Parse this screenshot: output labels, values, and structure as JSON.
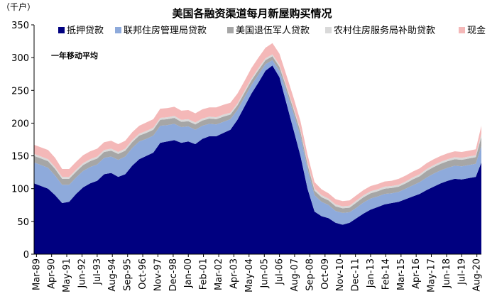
{
  "chart_data": {
    "type": "area",
    "stacked": true,
    "title": "美国各融资渠道每月新屋购买情况",
    "unit": "（千户）",
    "annotation": "一年移动平均",
    "ylim": [
      0,
      350
    ],
    "yticks": [
      0,
      50,
      100,
      150,
      200,
      250,
      300,
      350
    ],
    "x_tick_labels": [
      "Mar-89",
      "Apr-90",
      "May-91",
      "Jun-92",
      "Jul-93",
      "Aug-94",
      "Sep-95",
      "Oct-96",
      "Nov-97",
      "Dec-98",
      "Jan-00",
      "Feb-01",
      "Mar-02",
      "Apr-03",
      "May-04",
      "Jun-05",
      "Jul-06",
      "Aug-07",
      "Sep-08",
      "Oct-09",
      "Nov-10",
      "Dec-11",
      "Jan-13",
      "Feb-14",
      "Mar-15",
      "Apr-16",
      "May-17",
      "Jun-18",
      "Jul-19",
      "Aug-20"
    ],
    "x_years": [
      1989.17,
      1990.25,
      1991.33,
      1992.42,
      1993.5,
      1994.58,
      1995.67,
      1996.75,
      1997.83,
      1998.92,
      2000.0,
      2001.08,
      2002.17,
      2003.25,
      2004.33,
      2005.42,
      2006.5,
      2007.58,
      2008.67,
      2009.75,
      2010.83,
      2011.92,
      2013.0,
      2014.08,
      2015.17,
      2016.25,
      2017.33,
      2018.42,
      2019.5,
      2020.58
    ],
    "x": [
      1989.0,
      1989.5,
      1990.0,
      1990.5,
      1991.0,
      1991.5,
      1992.0,
      1992.5,
      1993.0,
      1993.5,
      1994.0,
      1994.5,
      1995.0,
      1995.5,
      1996.0,
      1996.5,
      1997.0,
      1997.5,
      1998.0,
      1998.5,
      1999.0,
      1999.5,
      2000.0,
      2000.5,
      2001.0,
      2001.5,
      2002.0,
      2002.5,
      2003.0,
      2003.5,
      2004.0,
      2004.5,
      2005.0,
      2005.5,
      2006.0,
      2006.5,
      2007.0,
      2007.5,
      2008.0,
      2008.5,
      2009.0,
      2009.5,
      2010.0,
      2010.5,
      2011.0,
      2011.5,
      2012.0,
      2012.5,
      2013.0,
      2013.5,
      2014.0,
      2014.5,
      2015.0,
      2015.5,
      2016.0,
      2016.5,
      2017.0,
      2017.5,
      2018.0,
      2018.5,
      2019.0,
      2019.5,
      2020.0,
      2020.5,
      2020.9
    ],
    "series": [
      {
        "name": "抵押贷款",
        "color": "#000080",
        "values": [
          108,
          104,
          100,
          90,
          78,
          80,
          92,
          102,
          108,
          112,
          122,
          124,
          118,
          122,
          135,
          145,
          150,
          155,
          170,
          172,
          174,
          170,
          172,
          168,
          176,
          180,
          180,
          185,
          190,
          205,
          225,
          245,
          262,
          280,
          288,
          270,
          230,
          190,
          150,
          100,
          65,
          58,
          55,
          48,
          45,
          48,
          55,
          62,
          68,
          72,
          76,
          78,
          80,
          84,
          88,
          92,
          98,
          103,
          108,
          112,
          115,
          114,
          116,
          118,
          140
        ]
      },
      {
        "name": "联邦住房管理局贷款",
        "color": "#8eaadb",
        "values": [
          32,
          32,
          32,
          30,
          28,
          26,
          25,
          25,
          25,
          25,
          25,
          25,
          26,
          27,
          27,
          27,
          26,
          26,
          26,
          25,
          25,
          24,
          23,
          22,
          20,
          19,
          18,
          17,
          16,
          15,
          14,
          13,
          12,
          10,
          8,
          10,
          18,
          25,
          30,
          30,
          25,
          22,
          20,
          18,
          18,
          16,
          16,
          17,
          17,
          16,
          16,
          15,
          15,
          16,
          17,
          18,
          19,
          20,
          20,
          20,
          20,
          20,
          20,
          20,
          25
        ]
      },
      {
        "name": "美国退伍军人贷款",
        "color": "#a6a6a6",
        "values": [
          10,
          10,
          10,
          10,
          9,
          9,
          9,
          9,
          9,
          9,
          9,
          9,
          9,
          9,
          9,
          9,
          9,
          9,
          9,
          9,
          9,
          8,
          8,
          8,
          8,
          8,
          8,
          8,
          7,
          7,
          7,
          7,
          7,
          6,
          6,
          6,
          6,
          6,
          7,
          7,
          7,
          7,
          7,
          7,
          7,
          7,
          8,
          8,
          8,
          8,
          8,
          8,
          8,
          8,
          9,
          9,
          10,
          10,
          10,
          10,
          10,
          10,
          10,
          10,
          14
        ]
      },
      {
        "name": "农村住房服务局补助贷款",
        "color": "#d9d9d9",
        "values": [
          3,
          3,
          3,
          3,
          3,
          3,
          3,
          3,
          3,
          3,
          3,
          3,
          3,
          3,
          3,
          3,
          3,
          3,
          3,
          3,
          3,
          3,
          3,
          3,
          3,
          3,
          3,
          3,
          3,
          3,
          3,
          3,
          3,
          3,
          3,
          3,
          3,
          3,
          3,
          3,
          3,
          3,
          3,
          3,
          3,
          3,
          3,
          3,
          3,
          3,
          3,
          3,
          3,
          3,
          3,
          3,
          3,
          3,
          3,
          3,
          3,
          3,
          3,
          3,
          5
        ]
      },
      {
        "name": "现金",
        "color": "#f4b8b8",
        "values": [
          14,
          14,
          14,
          14,
          12,
          12,
          12,
          12,
          12,
          12,
          12,
          12,
          12,
          12,
          12,
          12,
          13,
          13,
          14,
          14,
          14,
          14,
          14,
          14,
          14,
          14,
          15,
          15,
          15,
          15,
          15,
          16,
          16,
          16,
          17,
          17,
          16,
          15,
          13,
          12,
          10,
          9,
          8,
          8,
          8,
          8,
          8,
          8,
          8,
          8,
          8,
          8,
          9,
          9,
          9,
          9,
          9,
          9,
          9,
          9,
          9,
          9,
          9,
          9,
          12
        ]
      }
    ]
  }
}
